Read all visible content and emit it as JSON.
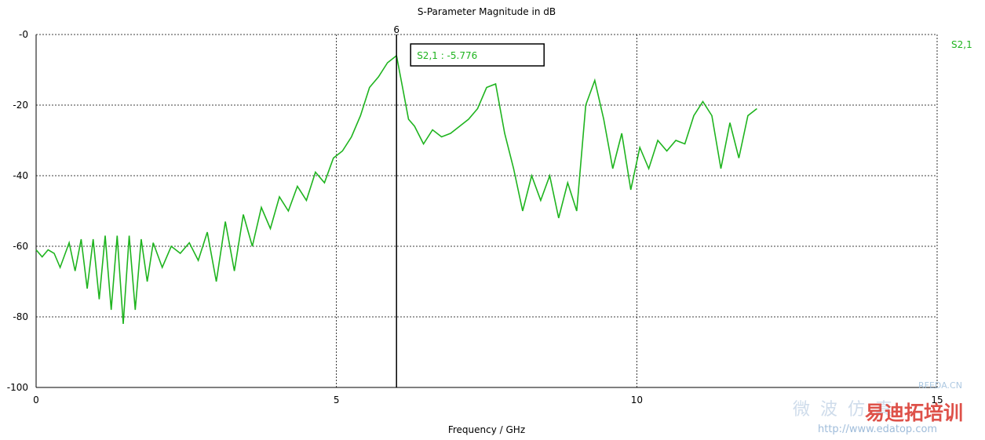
{
  "chart_data": {
    "type": "line",
    "title": "S-Parameter Magnitude in dB",
    "xlabel": "Frequency / GHz",
    "ylabel": "",
    "xlim": [
      0,
      15
    ],
    "ylim": [
      -100,
      0
    ],
    "x_ticks": [
      0,
      5,
      10,
      15
    ],
    "y_ticks": [
      0,
      -20,
      -40,
      -60,
      -80,
      -100
    ],
    "x_tick_labels": [
      "0",
      "5",
      "10",
      "15"
    ],
    "y_tick_labels": [
      "-0",
      "-20",
      "-40",
      "-60",
      "-80",
      "-100"
    ],
    "grid": true,
    "legend_position": "top-right",
    "series": [
      {
        "name": "S2,1",
        "color": "#1fb41f",
        "x": [
          0.0,
          0.1,
          0.2,
          0.3,
          0.4,
          0.55,
          0.65,
          0.75,
          0.85,
          0.95,
          1.05,
          1.15,
          1.25,
          1.35,
          1.45,
          1.55,
          1.65,
          1.75,
          1.85,
          1.95,
          2.1,
          2.25,
          2.4,
          2.55,
          2.7,
          2.85,
          3.0,
          3.15,
          3.3,
          3.45,
          3.6,
          3.75,
          3.9,
          4.05,
          4.2,
          4.35,
          4.5,
          4.65,
          4.8,
          4.95,
          5.1,
          5.25,
          5.4,
          5.55,
          5.7,
          5.85,
          6.0,
          6.1,
          6.2,
          6.3,
          6.45,
          6.6,
          6.75,
          6.9,
          7.05,
          7.2,
          7.35,
          7.5,
          7.65,
          7.8,
          7.95,
          8.1,
          8.25,
          8.4,
          8.55,
          8.7,
          8.85,
          9.0,
          9.15,
          9.3,
          9.45,
          9.6,
          9.75,
          9.9,
          10.05,
          10.2,
          10.35,
          10.5,
          10.65,
          10.8,
          10.95,
          11.1,
          11.25,
          11.4,
          11.55,
          11.7,
          11.85,
          12.0
        ],
        "values": [
          -61,
          -63,
          -61,
          -62,
          -66,
          -59,
          -67,
          -58,
          -72,
          -58,
          -75,
          -57,
          -78,
          -57,
          -82,
          -57,
          -78,
          -58,
          -70,
          -59,
          -66,
          -60,
          -62,
          -59,
          -64,
          -56,
          -70,
          -53,
          -67,
          -51,
          -60,
          -49,
          -55,
          -46,
          -50,
          -43,
          -47,
          -39,
          -42,
          -35,
          -33,
          -29,
          -23,
          -15,
          -12,
          -8,
          -6,
          -15,
          -24,
          -26,
          -31,
          -27,
          -29,
          -28,
          -26,
          -24,
          -21,
          -15,
          -14,
          -28,
          -38,
          -50,
          -40,
          -47,
          -40,
          -52,
          -42,
          -50,
          -20,
          -13,
          -24,
          -38,
          -28,
          -44,
          -32,
          -38,
          -30,
          -33,
          -30,
          -31,
          -23,
          -19,
          -23,
          -38,
          -25,
          -35,
          -23,
          -21
        ],
        "marker": {
          "x": 6,
          "label": "S2,1 : -5.776",
          "value": -5.776
        }
      }
    ]
  },
  "watermark": {
    "site_name": "RFEDA.CN",
    "cn_text": "微 波 仿 真",
    "training_text": "易迪拓培训",
    "url": "http://www.edatop.com"
  }
}
